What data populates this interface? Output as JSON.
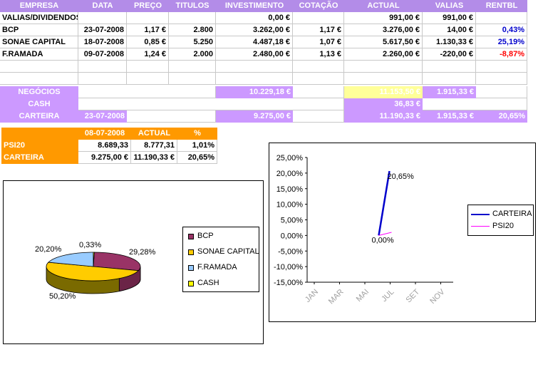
{
  "table": {
    "headers": [
      "EMPRESA",
      "DATA",
      "PREÇO",
      "TITULOS",
      "INVESTIMENTO",
      "COTAÇÃO",
      "ACTUAL",
      "VALIAS",
      "RENTBL"
    ],
    "rows": [
      [
        "VALIAS/DIVIDENDOS",
        "",
        "",
        "",
        "0,00 €",
        "",
        "991,00 €",
        "991,00 €",
        ""
      ],
      [
        "BCP",
        "23-07-2008",
        "1,17 €",
        "2.800",
        "3.262,00 €",
        "1,17 €",
        "3.276,00 €",
        "14,00 €",
        "0,43%"
      ],
      [
        "SONAE CAPITAL",
        "18-07-2008",
        "0,85 €",
        "5.250",
        "4.487,18 €",
        "1,07 €",
        "5.617,50 €",
        "1.130,33 €",
        "25,19%"
      ],
      [
        "F.RAMADA",
        "09-07-2008",
        "1,24 €",
        "2.000",
        "2.480,00 €",
        "1,13 €",
        "2.260,00 €",
        "-220,00 €",
        "-8,87%"
      ]
    ],
    "summary": {
      "negocios": {
        "label": "NEGÓCIOS",
        "investimento": "10.229,18 €",
        "actual": "11.153,50 €",
        "valias": "1.915,33 €"
      },
      "cash": {
        "label": "CASH",
        "actual": "36,83 €"
      },
      "carteira": {
        "label": "CARTEIRA",
        "data": "23-07-2008",
        "investimento": "9.275,00 €",
        "actual": "11.190,33 €",
        "valias": "1.915,33 €",
        "rentbl": "20,65%"
      }
    }
  },
  "psi_table": {
    "headers": [
      "",
      "08-07-2008",
      "ACTUAL",
      "%"
    ],
    "rows": [
      [
        "PSI20",
        "8.689,33",
        "8.777,31",
        "1,01%"
      ],
      [
        "CARTEIRA",
        "9.275,00 €",
        "11.190,33 €",
        "20,65%"
      ]
    ]
  },
  "colors": {
    "header": "#b38ce8",
    "lilac": "#cc99ff",
    "yellow": "#ffff99",
    "orange": "#ff9900",
    "bcp": "#993366",
    "sonae": "#ffcc00",
    "framada": "#99ccff",
    "cash": "#ffff00",
    "carteira": "#0000cc",
    "psi20": "#ff00ff"
  },
  "chart_data": [
    {
      "type": "pie",
      "categories": [
        "BCP",
        "SONAE CAPITAL",
        "F.RAMADA",
        "CASH"
      ],
      "values": [
        29.28,
        50.2,
        20.2,
        0.33
      ],
      "labels": [
        "29,28%",
        "50,20%",
        "20,20%",
        "0,33%"
      ],
      "legend": "right"
    },
    {
      "type": "line",
      "x": [
        "JAN",
        "MAR",
        "MAI",
        "JUL",
        "SET",
        "NOV"
      ],
      "ylim": [
        -15,
        25
      ],
      "yticks": [
        "25,00%",
        "20,00%",
        "15,00%",
        "10,00%",
        "5,00%",
        "0,00%",
        "-5,00%",
        "-10,00%",
        "-15,00%"
      ],
      "series": [
        {
          "name": "CARTEIRA",
          "points": [
            [
              "JUL",
              0
            ],
            [
              "JUL",
              20.65
            ]
          ]
        },
        {
          "name": "PSI20",
          "points": [
            [
              "JUL",
              0
            ],
            [
              "JUL",
              1.01
            ]
          ]
        }
      ],
      "annotations": [
        "20,65%",
        "0,00%"
      ],
      "legend": "right"
    }
  ]
}
